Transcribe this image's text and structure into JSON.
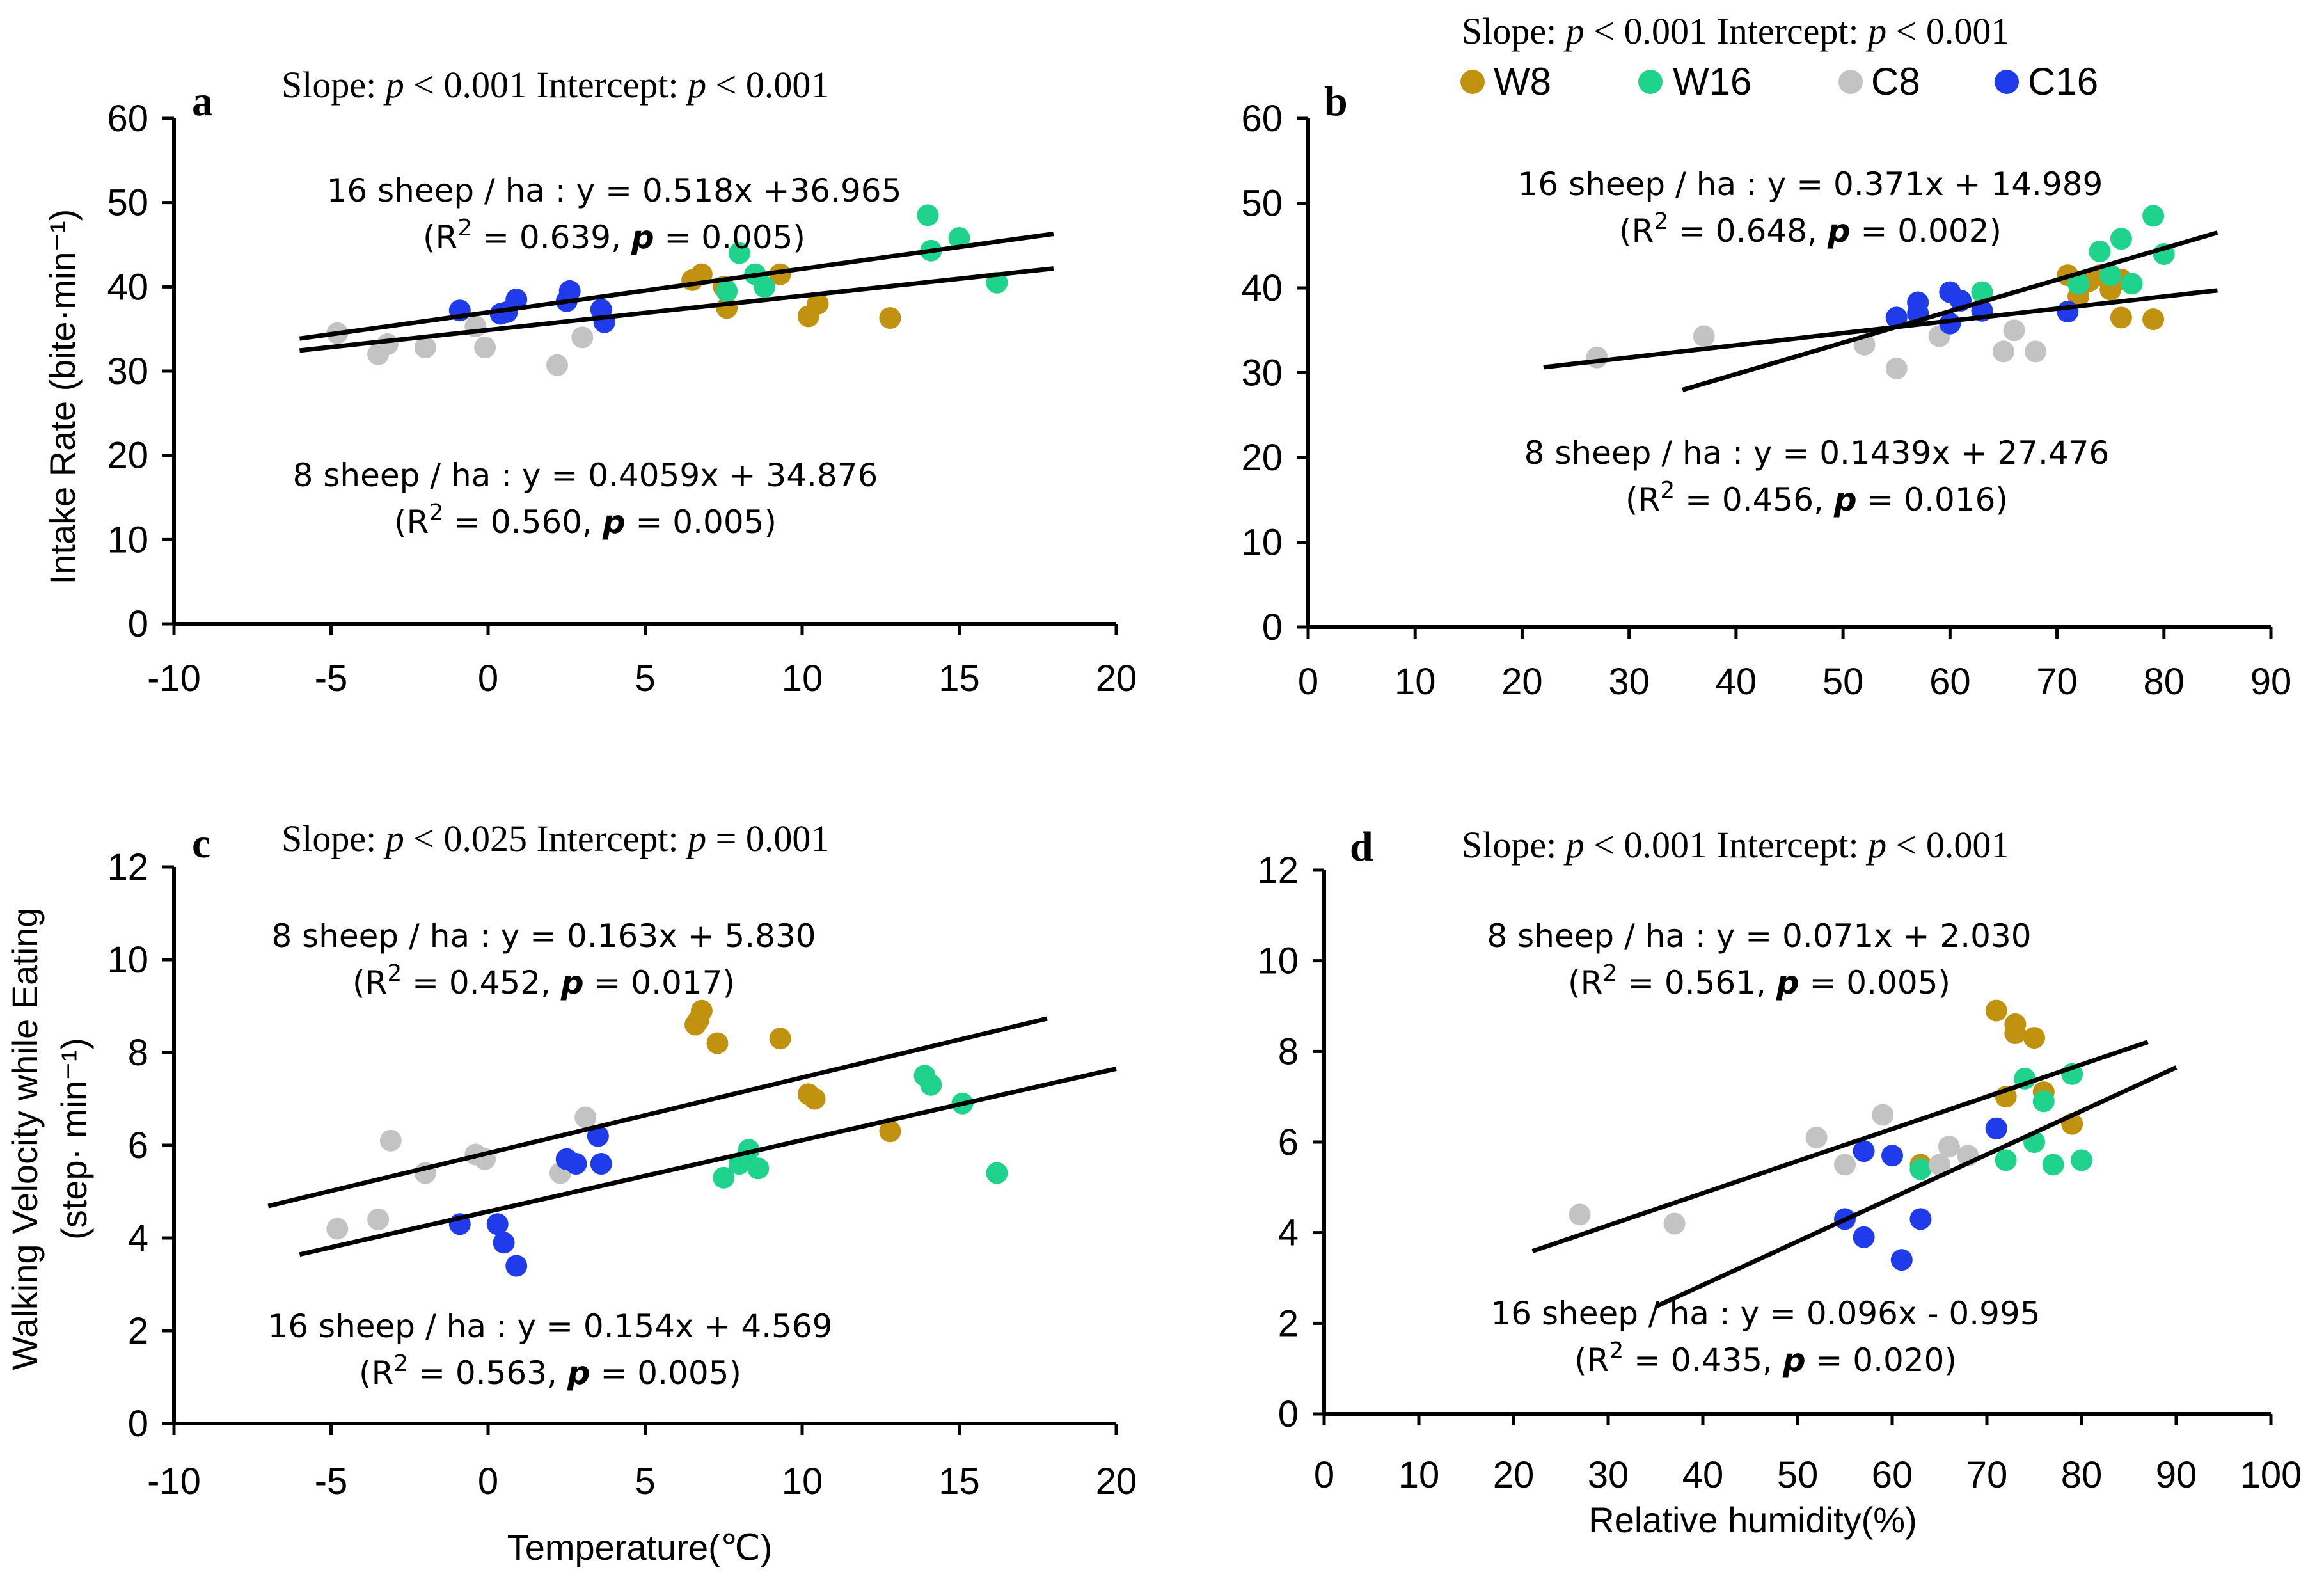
{
  "figure": {
    "legend": [
      {
        "label": "W8",
        "color": "#C0920F"
      },
      {
        "label": "W16",
        "color": "#1FD38C"
      },
      {
        "label": "C8",
        "color": "#C3C3C3"
      },
      {
        "label": "C16",
        "color": "#1F3BEA"
      }
    ],
    "y_label_top": "Intake Rate (bite·min⁻¹)",
    "y_label_bottom_line1": "Walking Velocity while Eating",
    "y_label_bottom_line2": "(step· min⁻¹)",
    "x_label_temperature": "Temperature(℃)",
    "x_label_humidity": "Relative humidity(%)"
  },
  "chart_data": [
    {
      "id": "a",
      "type": "scatter",
      "panel_label": "a",
      "slope_label": "Slope: ",
      "slope_p": "p",
      "slope_value": " < 0.001",
      "intercept_label": "Intercept: ",
      "intercept_p": "p",
      "intercept_value": " < 0.001",
      "xlabel": "",
      "ylabel": "Intake Rate (bite·min⁻¹)",
      "xlim": [
        -10,
        20
      ],
      "ylim": [
        0,
        60
      ],
      "xticks": [
        "-10",
        "-5",
        "0",
        "5",
        "10",
        "15",
        "20"
      ],
      "yticks": [
        "0",
        "10",
        "20",
        "30",
        "40",
        "50",
        "60"
      ],
      "equations": [
        {
          "line1": "16 sheep / ha : y = 0.518x +36.965",
          "line2": "(R² = 0.639, p = 0.005)"
        },
        {
          "line1": "8 sheep / ha : y = 0.4059x + 34.876",
          "line2": "(R² = 0.560, p = 0.005)"
        }
      ],
      "fits": [
        {
          "name": "16 sheep / ha",
          "slope": 0.518,
          "intercept": 36.965,
          "x_range": [
            -6,
            18
          ]
        },
        {
          "name": "8 sheep / ha",
          "slope": 0.4059,
          "intercept": 34.876,
          "x_range": [
            -6,
            18
          ]
        }
      ],
      "series": [
        {
          "name": "W8",
          "points": [
            [
              6.5,
              40.8
            ],
            [
              6.8,
              41.5
            ],
            [
              7.5,
              40.0
            ],
            [
              7.6,
              37.5
            ],
            [
              9.3,
              41.5
            ],
            [
              10.2,
              36.5
            ],
            [
              10.5,
              38.0
            ],
            [
              12.8,
              36.3
            ]
          ]
        },
        {
          "name": "W16",
          "points": [
            [
              7.6,
              39.5
            ],
            [
              8.0,
              44.0
            ],
            [
              8.5,
              41.5
            ],
            [
              8.8,
              40.0
            ],
            [
              14.0,
              48.5
            ],
            [
              14.1,
              44.3
            ],
            [
              15.0,
              45.8
            ],
            [
              16.2,
              40.5
            ]
          ]
        },
        {
          "name": "C8",
          "points": [
            [
              -4.8,
              34.5
            ],
            [
              -3.5,
              32.0
            ],
            [
              -3.2,
              33.2
            ],
            [
              -2.0,
              32.8
            ],
            [
              -0.4,
              35.3
            ],
            [
              -0.1,
              32.8
            ],
            [
              2.2,
              30.7
            ],
            [
              3.0,
              34.0
            ]
          ]
        },
        {
          "name": "C16",
          "points": [
            [
              -0.9,
              37.2
            ],
            [
              0.4,
              36.8
            ],
            [
              0.6,
              37.0
            ],
            [
              0.9,
              38.5
            ],
            [
              2.5,
              38.3
            ],
            [
              2.6,
              39.5
            ],
            [
              3.6,
              37.3
            ],
            [
              3.7,
              35.8
            ]
          ]
        }
      ]
    },
    {
      "id": "b",
      "type": "scatter",
      "panel_label": "b",
      "slope_label": "Slope: ",
      "slope_p": "p",
      "slope_value": " < 0.001",
      "intercept_label": "Intercept: ",
      "intercept_p": "p",
      "intercept_value": " < 0.001",
      "xlabel": "",
      "ylabel": "",
      "xlim": [
        0,
        90
      ],
      "ylim": [
        0,
        60
      ],
      "xticks": [
        "0",
        "10",
        "20",
        "30",
        "40",
        "50",
        "60",
        "70",
        "80",
        "90"
      ],
      "yticks": [
        "0",
        "10",
        "20",
        "30",
        "40",
        "50",
        "60"
      ],
      "equations": [
        {
          "line1": "16 sheep / ha : y = 0.371x + 14.989",
          "line2": "(R² = 0.648, p = 0.002)"
        },
        {
          "line1": "8 sheep / ha : y = 0.1439x + 27.476",
          "line2": "(R² = 0.456, p = 0.016)"
        }
      ],
      "fits": [
        {
          "name": "16 sheep / ha",
          "slope": 0.371,
          "intercept": 14.989,
          "x_range": [
            35,
            85
          ]
        },
        {
          "name": "8 sheep / ha",
          "slope": 0.1439,
          "intercept": 27.476,
          "x_range": [
            22,
            85
          ]
        }
      ],
      "series": [
        {
          "name": "W8",
          "points": [
            [
              71,
              41.5
            ],
            [
              72,
              39.0
            ],
            [
              73,
              40.8
            ],
            [
              74,
              41.5
            ],
            [
              75,
              39.8
            ],
            [
              76,
              36.5
            ],
            [
              79,
              36.3
            ],
            [
              76,
              41.0
            ]
          ]
        },
        {
          "name": "W16",
          "points": [
            [
              63,
              39.5
            ],
            [
              72,
              40.5
            ],
            [
              74,
              44.3
            ],
            [
              75,
              41.5
            ],
            [
              76,
              45.8
            ],
            [
              77,
              40.5
            ],
            [
              79,
              48.5
            ],
            [
              80,
              44.0
            ]
          ]
        },
        {
          "name": "C8",
          "points": [
            [
              27,
              31.8
            ],
            [
              37,
              34.3
            ],
            [
              52,
              33.3
            ],
            [
              55,
              30.5
            ],
            [
              59,
              34.3
            ],
            [
              65,
              32.5
            ],
            [
              66,
              35.0
            ],
            [
              68,
              32.5
            ]
          ]
        },
        {
          "name": "C16",
          "points": [
            [
              55,
              36.5
            ],
            [
              57,
              37.0
            ],
            [
              57,
              38.3
            ],
            [
              60,
              39.5
            ],
            [
              60,
              35.8
            ],
            [
              61,
              38.5
            ],
            [
              63,
              37.3
            ],
            [
              71,
              37.2
            ]
          ]
        }
      ]
    },
    {
      "id": "c",
      "type": "scatter",
      "panel_label": "c",
      "slope_label": "Slope: ",
      "slope_p": "p",
      "slope_value": " < 0.025",
      "intercept_label": "Intercept: ",
      "intercept_p": "p",
      "intercept_value": " = 0.001",
      "xlabel": "Temperature(℃)",
      "ylabel": "Walking Velocity while Eating (step· min⁻¹)",
      "xlim": [
        -10,
        20
      ],
      "ylim": [
        0,
        12
      ],
      "xticks": [
        "-10",
        "-5",
        "0",
        "5",
        "10",
        "15",
        "20"
      ],
      "yticks": [
        "0",
        "2",
        "4",
        "6",
        "8",
        "10",
        "12"
      ],
      "equations": [
        {
          "line1": "8 sheep / ha : y = 0.163x + 5.830",
          "line2": "(R² = 0.452, p  = 0.017)"
        },
        {
          "line1": "16 sheep / ha : y = 0.154x + 4.569",
          "line2": "(R² = 0.563, p  = 0.005)"
        }
      ],
      "fits": [
        {
          "name": "8 sheep / ha",
          "slope": 0.163,
          "intercept": 5.83,
          "x_range": [
            -7,
            17.8
          ]
        },
        {
          "name": "16 sheep / ha",
          "slope": 0.154,
          "intercept": 4.569,
          "x_range": [
            -6,
            20
          ]
        }
      ],
      "series": [
        {
          "name": "W8",
          "points": [
            [
              6.6,
              8.6
            ],
            [
              6.8,
              8.9
            ],
            [
              7.3,
              8.2
            ],
            [
              9.3,
              8.3
            ],
            [
              10.2,
              7.1
            ],
            [
              10.4,
              7.0
            ],
            [
              12.8,
              6.3
            ],
            [
              6.7,
              8.7
            ]
          ]
        },
        {
          "name": "W16",
          "points": [
            [
              7.5,
              5.3
            ],
            [
              8.0,
              5.6
            ],
            [
              8.3,
              5.9
            ],
            [
              8.6,
              5.5
            ],
            [
              13.9,
              7.5
            ],
            [
              14.1,
              7.3
            ],
            [
              15.1,
              6.9
            ],
            [
              16.2,
              5.4
            ]
          ]
        },
        {
          "name": "C8",
          "points": [
            [
              -4.8,
              4.2
            ],
            [
              -3.5,
              4.4
            ],
            [
              -3.1,
              6.1
            ],
            [
              -2.0,
              5.4
            ],
            [
              -0.4,
              5.8
            ],
            [
              -0.1,
              5.7
            ],
            [
              2.3,
              5.4
            ],
            [
              3.1,
              6.6
            ]
          ]
        },
        {
          "name": "C16",
          "points": [
            [
              -0.9,
              4.3
            ],
            [
              0.3,
              4.3
            ],
            [
              0.5,
              3.9
            ],
            [
              0.9,
              3.4
            ],
            [
              2.5,
              5.7
            ],
            [
              2.8,
              5.6
            ],
            [
              3.5,
              6.2
            ],
            [
              3.6,
              5.6
            ]
          ]
        }
      ]
    },
    {
      "id": "d",
      "type": "scatter",
      "panel_label": "d",
      "slope_label": "Slope: ",
      "slope_p": "p",
      "slope_value": " < 0.001",
      "intercept_label": "Intercept: ",
      "intercept_p": "p",
      "intercept_value": " < 0.001",
      "xlabel": "Relative humidity(%)",
      "ylabel": "",
      "xlim": [
        0,
        100
      ],
      "ylim": [
        0,
        12
      ],
      "xticks": [
        "0",
        "10",
        "20",
        "30",
        "40",
        "50",
        "60",
        "70",
        "80",
        "90",
        "100"
      ],
      "yticks": [
        "0",
        "2",
        "4",
        "6",
        "8",
        "10",
        "12"
      ],
      "equations": [
        {
          "line1": "8 sheep / ha : y = 0.071x + 2.030",
          "line2": "(R² = 0.561, p  = 0.005)"
        },
        {
          "line1": "16 sheep /  ha : y = 0.096x - 0.995",
          "line2": "(R² = 0.435, p = 0.020)"
        }
      ],
      "fits": [
        {
          "name": "8 sheep / ha",
          "slope": 0.071,
          "intercept": 2.03,
          "x_range": [
            22,
            87
          ]
        },
        {
          "name": "16 sheep / ha",
          "slope": 0.096,
          "intercept": -0.995,
          "x_range": [
            35,
            90
          ]
        }
      ],
      "series": [
        {
          "name": "W8",
          "points": [
            [
              63,
              5.5
            ],
            [
              71,
              8.9
            ],
            [
              72,
              7.0
            ],
            [
              73,
              8.4
            ],
            [
              73,
              8.6
            ],
            [
              75,
              8.3
            ],
            [
              76,
              7.1
            ],
            [
              79,
              6.4
            ]
          ]
        },
        {
          "name": "W16",
          "points": [
            [
              63,
              5.4
            ],
            [
              72,
              5.6
            ],
            [
              74,
              7.4
            ],
            [
              75,
              6.0
            ],
            [
              76,
              6.9
            ],
            [
              77,
              5.5
            ],
            [
              79,
              7.5
            ],
            [
              80,
              5.6
            ]
          ]
        },
        {
          "name": "C8",
          "points": [
            [
              27,
              4.4
            ],
            [
              37,
              4.2
            ],
            [
              52,
              6.1
            ],
            [
              55,
              5.5
            ],
            [
              59,
              6.6
            ],
            [
              65,
              5.5
            ],
            [
              66,
              5.9
            ],
            [
              68,
              5.7
            ]
          ]
        },
        {
          "name": "C16",
          "points": [
            [
              55,
              4.3
            ],
            [
              57,
              5.8
            ],
            [
              57,
              3.9
            ],
            [
              60,
              5.7
            ],
            [
              61,
              3.4
            ],
            [
              63,
              4.3
            ],
            [
              71,
              6.3
            ],
            [
              71,
              6.3
            ]
          ]
        }
      ]
    }
  ]
}
